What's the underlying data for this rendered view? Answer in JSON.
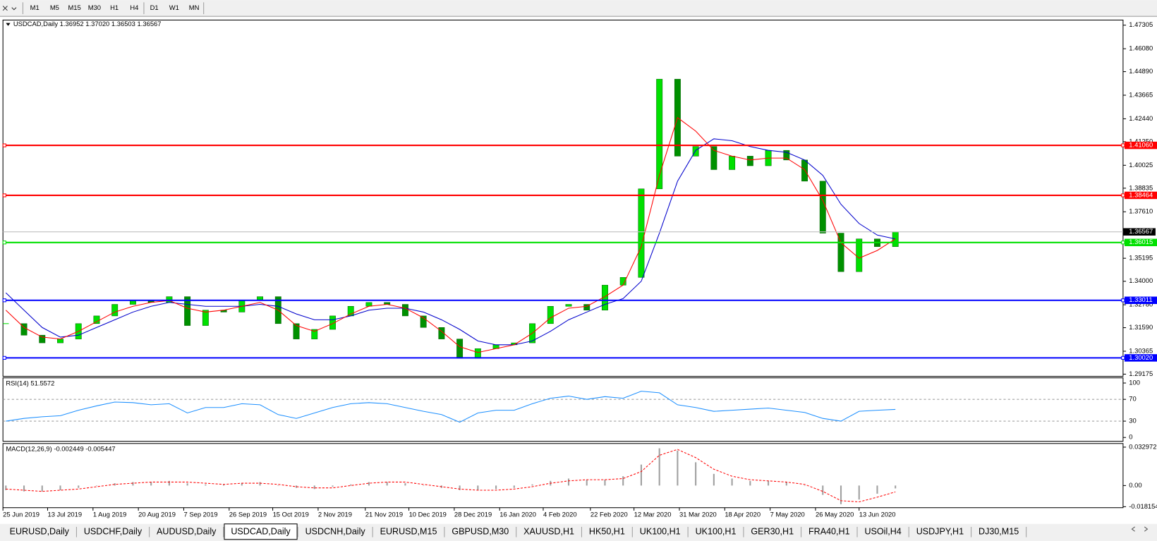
{
  "toolbar": {
    "timeframes": [
      "M1",
      "M5",
      "M15",
      "M30",
      "H1",
      "H4",
      "D1",
      "W1",
      "MN"
    ]
  },
  "chart_data": [
    {
      "type": "candlestick",
      "title": "USDCAD,Daily  1.36952 1.37020 1.36503 1.36567",
      "up_color": "#00e000",
      "down_color": "#009000",
      "close": [
        1.318,
        1.312,
        1.308,
        1.31,
        1.318,
        1.322,
        1.328,
        1.33,
        1.329,
        1.332,
        1.317,
        1.325,
        1.324,
        1.33,
        1.332,
        1.318,
        1.31,
        1.315,
        1.322,
        1.327,
        1.329,
        1.328,
        1.322,
        1.316,
        1.31,
        1.3,
        1.305,
        1.307,
        1.308,
        1.318,
        1.327,
        1.328,
        1.325,
        1.338,
        1.342,
        1.388,
        1.445,
        1.405,
        1.41,
        1.398,
        1.405,
        1.4,
        1.408,
        1.403,
        1.392,
        1.365,
        1.345,
        1.362,
        1.358,
        1.36567
      ],
      "ma_fast": {
        "color": "#ff0000",
        "values": [
          1.325,
          1.316,
          1.311,
          1.31,
          1.314,
          1.319,
          1.324,
          1.327,
          1.329,
          1.33,
          1.326,
          1.324,
          1.325,
          1.327,
          1.329,
          1.325,
          1.317,
          1.314,
          1.318,
          1.323,
          1.327,
          1.328,
          1.326,
          1.321,
          1.314,
          1.306,
          1.303,
          1.305,
          1.307,
          1.313,
          1.321,
          1.326,
          1.327,
          1.332,
          1.338,
          1.358,
          1.395,
          1.425,
          1.418,
          1.408,
          1.405,
          1.403,
          1.404,
          1.404,
          1.398,
          1.382,
          1.36,
          1.352,
          1.356,
          1.362
        ]
      },
      "ma_slow": {
        "color": "#0000cc",
        "values": [
          1.334,
          1.325,
          1.316,
          1.311,
          1.312,
          1.316,
          1.32,
          1.324,
          1.327,
          1.329,
          1.328,
          1.327,
          1.327,
          1.327,
          1.328,
          1.327,
          1.323,
          1.32,
          1.32,
          1.322,
          1.325,
          1.326,
          1.326,
          1.324,
          1.32,
          1.315,
          1.309,
          1.307,
          1.307,
          1.309,
          1.314,
          1.32,
          1.324,
          1.328,
          1.331,
          1.34,
          1.365,
          1.392,
          1.408,
          1.414,
          1.413,
          1.41,
          1.408,
          1.407,
          1.403,
          1.395,
          1.38,
          1.37,
          1.364,
          1.362
        ]
      },
      "xlim": [
        -0.16,
        61.54
      ],
      "ylim": [
        1.2906,
        1.4757
      ],
      "yticks": [
        1.47305,
        {
          "value": 1.4608,
          "label": "1.46080"
        },
        {
          "value": 1.4489,
          "label": "1.44890"
        },
        1.43665,
        {
          "value": 1.4244,
          "label": "1.42440"
        },
        {
          "value": 1.4125,
          "label": "1.41250"
        },
        1.40025,
        1.38835,
        {
          "value": 1.3761,
          "label": "1.37610"
        },
        1.35195,
        {
          "value": 1.34,
          "label": "1.34000"
        },
        {
          "value": 1.3278,
          "label": "1.32780"
        },
        {
          "value": 1.3159,
          "label": "1.31590"
        },
        1.30365,
        1.29175
      ],
      "levels": [
        {
          "price": 1.4106,
          "label": "1.41060",
          "color": "#ff0000"
        },
        {
          "price": 1.38464,
          "color": "#ff0000"
        },
        {
          "price": 1.36015,
          "color": "#00e000"
        },
        {
          "price": 1.33011,
          "color": "#0000ff"
        },
        {
          "price": 1.3002,
          "label": "1.30020",
          "color": "#0000ff"
        }
      ],
      "last_price": 1.36567,
      "xticks": [
        {
          "value": -0.2,
          "label": "25 Jun 2019"
        },
        {
          "value": 2.3,
          "label": "13 Jul 2019"
        },
        {
          "value": 4.8,
          "label": "1 Aug 2019"
        },
        {
          "value": 7.3,
          "label": "20 Aug 2019"
        },
        {
          "value": 9.8,
          "label": "7 Sep 2019"
        },
        {
          "value": 12.3,
          "label": "26 Sep 2019"
        },
        {
          "value": 14.7,
          "label": "15 Oct 2019"
        },
        {
          "value": 17.2,
          "label": "2 Nov 2019"
        },
        {
          "value": 19.8,
          "label": "21 Nov 2019"
        },
        {
          "value": 22.2,
          "label": "10 Dec 2019"
        },
        {
          "value": 24.7,
          "label": "28 Dec 2019"
        },
        {
          "value": 27.2,
          "label": "16 Jan 2020"
        },
        {
          "value": 29.6,
          "label": "4 Feb 2020"
        },
        {
          "value": 32.2,
          "label": "22 Feb 2020"
        },
        {
          "value": 34.6,
          "label": "12 Mar 2020"
        },
        {
          "value": 37.1,
          "label": "31 Mar 2020"
        },
        {
          "value": 39.6,
          "label": "18 Apr 2020"
        },
        {
          "value": 42.1,
          "label": "7 May 2020"
        },
        {
          "value": 44.6,
          "label": "26 May 2020"
        },
        {
          "value": 47.0,
          "label": "13 Jun 2020"
        }
      ]
    },
    {
      "type": "line",
      "title": "RSI(14) 51.5572",
      "color": "#1e90ff",
      "ylim": [
        -7,
        109.5
      ],
      "yticks": [
        100,
        70,
        30,
        0
      ],
      "values": [
        30,
        35,
        38,
        40,
        50,
        58,
        65,
        64,
        60,
        62,
        45,
        55,
        55,
        62,
        60,
        42,
        35,
        45,
        55,
        62,
        64,
        62,
        55,
        48,
        42,
        28,
        45,
        50,
        50,
        62,
        72,
        76,
        70,
        75,
        72,
        85,
        82,
        60,
        55,
        48,
        50,
        52,
        54,
        50,
        46,
        35,
        30,
        48,
        50,
        51.5572
      ]
    },
    {
      "type": "bar",
      "title": "MACD(12,26,9) -0.002449 -0.005447",
      "color": "#a0a0a0",
      "signal_color": "#ff0000",
      "ylim": [
        -0.019,
        0.0361
      ],
      "yticks": [
        0.032972,
        {
          "value": 0,
          "label": "0.00"
        },
        -0.018154
      ],
      "histogram": [
        -0.004,
        -0.005,
        -0.005,
        -0.004,
        -0.002,
        0,
        0.002,
        0.003,
        0.003,
        0.004,
        0.002,
        0.001,
        0.001,
        0.002,
        0.003,
        0,
        -0.002,
        -0.003,
        -0.001,
        0.001,
        0.003,
        0.003,
        0.002,
        0,
        -0.002,
        -0.004,
        -0.004,
        -0.003,
        -0.002,
        0.001,
        0.004,
        0.006,
        0.005,
        0.005,
        0.008,
        0.018,
        0.032,
        0.03,
        0.02,
        0.01,
        0.006,
        0.004,
        0.004,
        0.003,
        0,
        -0.008,
        -0.016,
        -0.012,
        -0.007,
        -0.002449
      ],
      "signal": [
        -0.003,
        -0.004,
        -0.005,
        -0.004,
        -0.003,
        -0.001,
        0.001,
        0.002,
        0.003,
        0.003,
        0.003,
        0.002,
        0.001,
        0.002,
        0.002,
        0.001,
        -0.001,
        -0.002,
        -0.002,
        0,
        0.002,
        0.003,
        0.003,
        0.001,
        -0.001,
        -0.003,
        -0.004,
        -0.004,
        -0.003,
        -0.001,
        0.002,
        0.004,
        0.005,
        0.005,
        0.006,
        0.012,
        0.026,
        0.031,
        0.024,
        0.014,
        0.008,
        0.005,
        0.004,
        0.003,
        0.001,
        -0.005,
        -0.013,
        -0.014,
        -0.01,
        -0.005447
      ]
    }
  ],
  "tabs": {
    "items": [
      "EURUSD,Daily",
      "USDCHF,Daily",
      "AUDUSD,Daily",
      "USDCAD,Daily",
      "USDCNH,Daily",
      "EURUSD,M15",
      "GBPUSD,M30",
      "XAUUSD,H1",
      "HK50,H1",
      "UK100,H1",
      "UK100,H1",
      "GER30,H1",
      "FRA40,H1",
      "USOil,H4",
      "USDJPY,H1",
      "DJ30,M15"
    ],
    "active": 3
  }
}
